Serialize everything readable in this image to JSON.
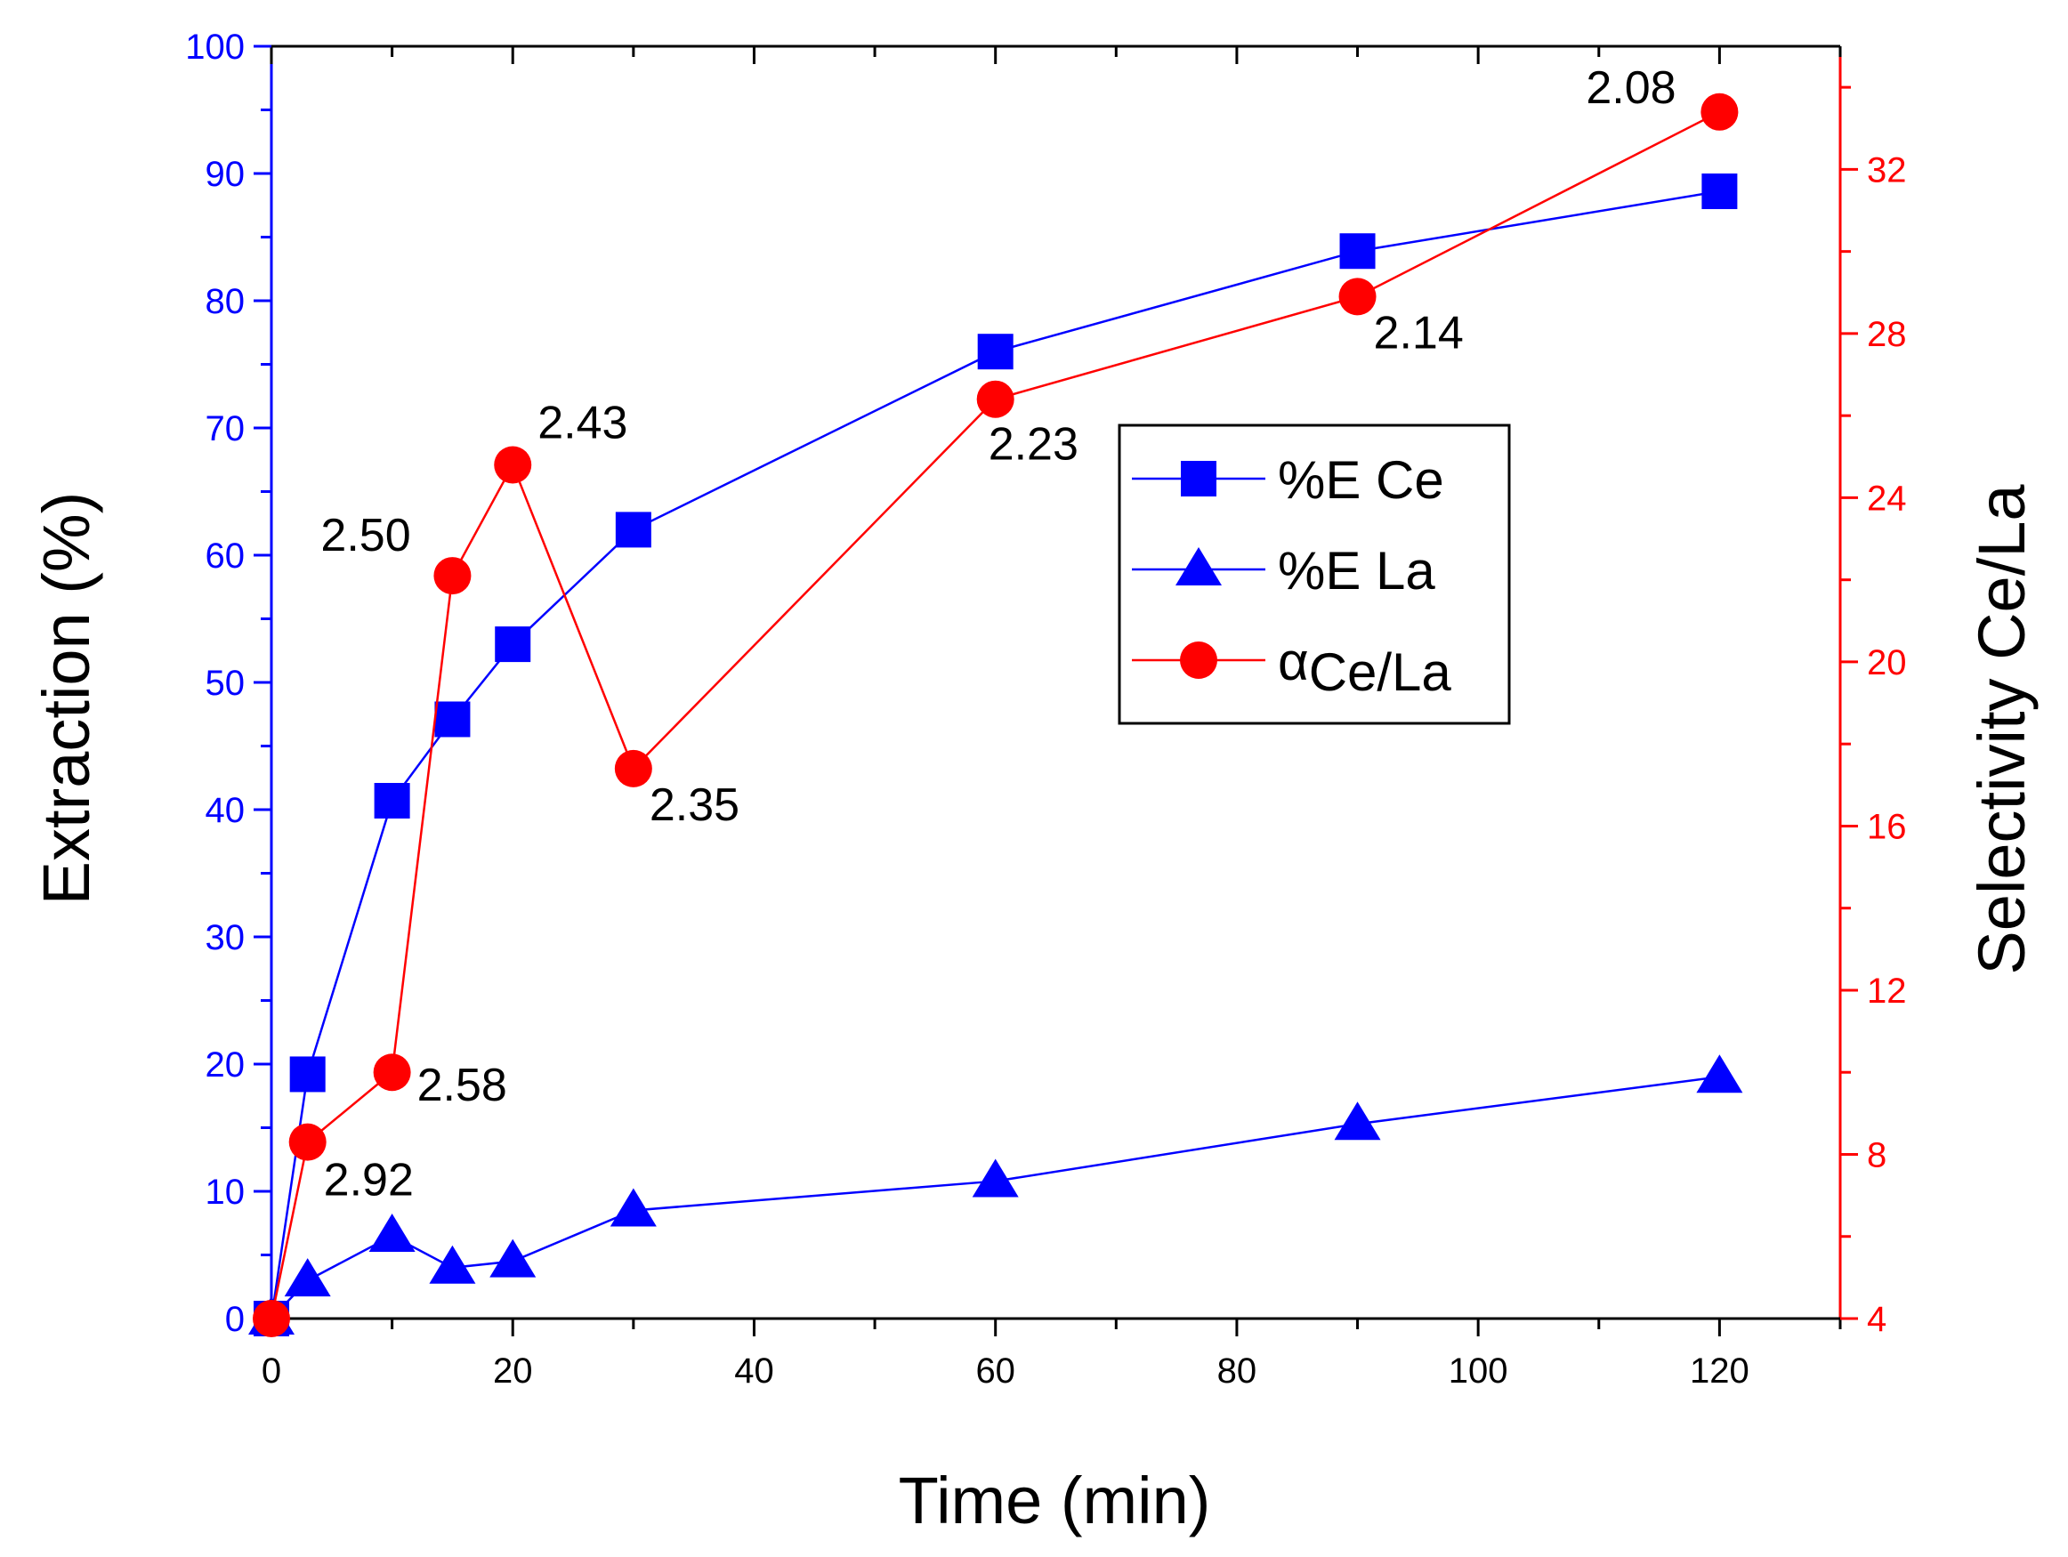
{
  "chart_data": {
    "type": "line",
    "x_label": "Time (min)",
    "y_left_label": "Extraction (%)",
    "y_right_label": "Selectivity Ce/La",
    "x_range": [
      0,
      130
    ],
    "x_ticks": [
      "0",
      "20",
      "40",
      "60",
      "80",
      "100",
      "120"
    ],
    "y_left_range": [
      0,
      100
    ],
    "y_left_ticks": [
      "0",
      "10",
      "20",
      "30",
      "40",
      "50",
      "60",
      "70",
      "80",
      "90",
      "100"
    ],
    "y_right_range": [
      4,
      35
    ],
    "y_right_ticks": [
      "4",
      "8",
      "12",
      "16",
      "20",
      "24",
      "28",
      "32"
    ],
    "colors": {
      "left_axis": "#0000ff",
      "right_axis": "#ff0000",
      "ce": "#0000ff",
      "la": "#0000ff",
      "alpha": "#ff0000"
    },
    "series": [
      {
        "name": "%E Ce",
        "axis": "left",
        "marker": "square",
        "x": [
          0,
          3,
          10,
          15,
          20,
          30,
          60,
          90,
          120
        ],
        "y": [
          0,
          19.2,
          40.7,
          47.1,
          53.0,
          62.0,
          76.0,
          83.9,
          88.6
        ]
      },
      {
        "name": "%E La",
        "axis": "left",
        "marker": "triangle",
        "x": [
          0,
          3,
          10,
          15,
          20,
          30,
          60,
          90,
          120
        ],
        "y": [
          0,
          3.0,
          6.5,
          4.0,
          4.5,
          8.5,
          10.8,
          15.3,
          19.0
        ]
      },
      {
        "name": "αCe/La",
        "axis": "right",
        "marker": "circle",
        "x": [
          0,
          3,
          10,
          15,
          20,
          30,
          60,
          90,
          120
        ],
        "y": [
          4.0,
          8.3,
          10.0,
          22.1,
          24.8,
          17.4,
          26.4,
          28.9,
          33.4
        ]
      }
    ],
    "annotations": [
      {
        "text": "2.92",
        "x": 3,
        "y": 8.3
      },
      {
        "text": "2.58",
        "x": 10,
        "y": 10.0
      },
      {
        "text": "2.50",
        "x": 15,
        "y": 22.1
      },
      {
        "text": "2.43",
        "x": 20,
        "y": 24.8
      },
      {
        "text": "2.35",
        "x": 30,
        "y": 17.4
      },
      {
        "text": "2.23",
        "x": 60,
        "y": 26.4
      },
      {
        "text": "2.14",
        "x": 90,
        "y": 28.9
      },
      {
        "text": "2.08",
        "x": 120,
        "y": 33.4
      }
    ],
    "legend": {
      "position": "center",
      "items": [
        {
          "label": "%E Ce",
          "marker": "square",
          "color": "#0000ff"
        },
        {
          "label": "%E La",
          "marker": "triangle",
          "color": "#0000ff"
        },
        {
          "label": "α",
          "label_sub": "Ce/La",
          "marker": "circle",
          "color": "#ff0000"
        }
      ]
    }
  }
}
